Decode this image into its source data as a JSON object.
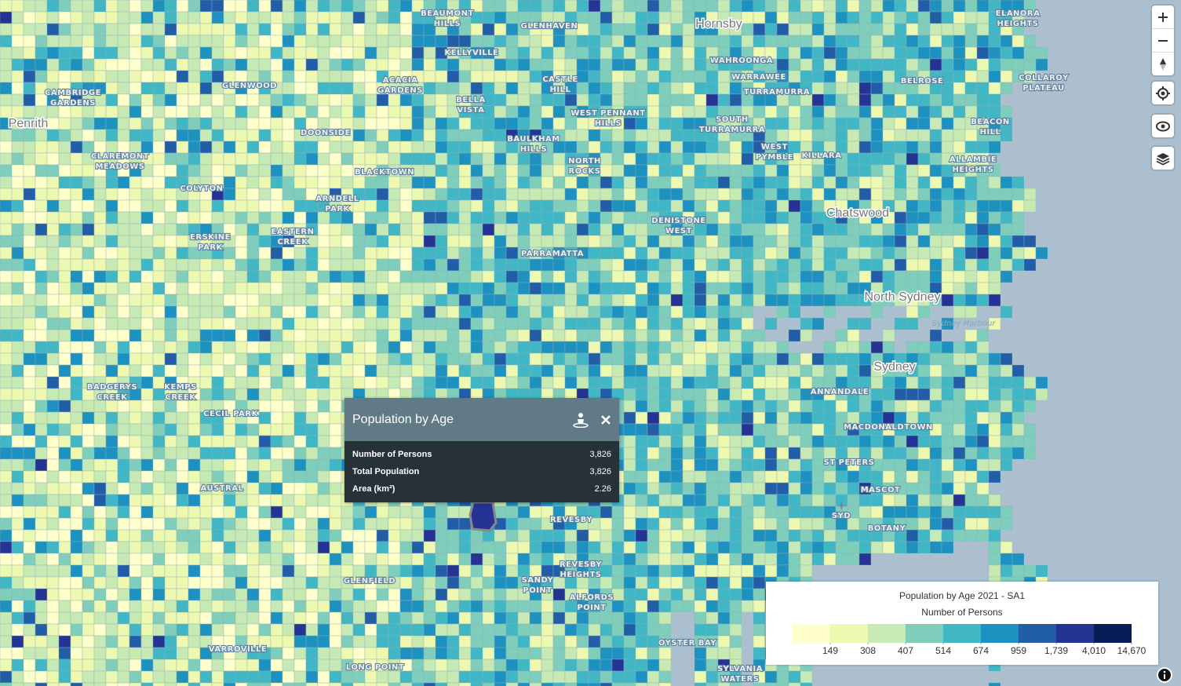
{
  "map": {
    "place_labels": [
      [
        "Penrith"
      ],
      [
        "Hornsby"
      ],
      [
        "Chatswood"
      ],
      [
        "North Sydney"
      ],
      [
        "Sydney"
      ],
      [
        "Sydney Harbour"
      ],
      [
        "BEAUMONT",
        "HILLS"
      ],
      [
        "GLENHAVEN"
      ],
      [
        "KELLYVILLE"
      ],
      [
        "CAMBRIDGE",
        "GARDENS"
      ],
      [
        "GLENWOOD"
      ],
      [
        "ACACIA",
        "GARDENS"
      ],
      [
        "CASTLE",
        "HILL"
      ],
      [
        "WAHROONGA"
      ],
      [
        "WARRAWEE"
      ],
      [
        "TURRAMURRA"
      ],
      [
        "BELROSE"
      ],
      [
        "BELLA",
        "VISTA"
      ],
      [
        "WEST PENNANT",
        "HILLS"
      ],
      [
        "SOUTH",
        "TURRAMURRA"
      ],
      [
        "BAULKHAM",
        "HILLS"
      ],
      [
        "DOONSIDE"
      ],
      [
        "CLAREMONT",
        "MEADOWS"
      ],
      [
        "BLACKTOWN"
      ],
      [
        "NORTH",
        "ROCKS"
      ],
      [
        "WEST",
        "PYMBLE"
      ],
      [
        "KILLARA"
      ],
      [
        "BEACON",
        "HILL"
      ],
      [
        "ALLAMBIE",
        "HEIGHTS"
      ],
      [
        "ELANORA",
        "HEIGHTS"
      ],
      [
        "COLLAROY",
        "PLATEAU"
      ],
      [
        "COLYTON"
      ],
      [
        "ARNDELL",
        "PARK"
      ],
      [
        "ERSKINE",
        "PARK"
      ],
      [
        "EASTERN",
        "CREEK"
      ],
      [
        "DENISTONE",
        "WEST"
      ],
      [
        "PARRAMATTA"
      ],
      [
        "ANNANDALE"
      ],
      [
        "MACDONALDTOWN"
      ],
      [
        "ST PETERS"
      ],
      [
        "MASCOT"
      ],
      [
        "SYD"
      ],
      [
        "BOTANY"
      ],
      [
        "BADGERYS",
        "CREEK"
      ],
      [
        "KEMPS",
        "CREEK"
      ],
      [
        "CECIL PARK"
      ],
      [
        "AUSTRAL"
      ],
      [
        "REVESBY"
      ],
      [
        "REVESBY",
        "HEIGHTS"
      ],
      [
        "SANDY",
        "POINT"
      ],
      [
        "GLENFIELD"
      ],
      [
        "ALFORDS",
        "POINT"
      ],
      [
        "OYSTER BAY"
      ],
      [
        "VARROVILLE"
      ],
      [
        "LONG POINT"
      ],
      [
        "SYLVANIA",
        "WATERS"
      ]
    ]
  },
  "popup": {
    "title": "Population by Age",
    "rows": [
      {
        "label": "Number of Persons",
        "value": "3,826"
      },
      {
        "label": "Total Population",
        "value": "3,826"
      },
      {
        "label": "Area (km²)",
        "value": "2.26"
      }
    ]
  },
  "legend": {
    "title": "Population by Age 2021 - SA1",
    "subtitle": "Number of Persons",
    "colors": [
      "#ffffcc",
      "#edf8b1",
      "#c7e9b4",
      "#7fcdbb",
      "#41b6c4",
      "#1d91c0",
      "#225ea8",
      "#253494",
      "#081d58"
    ],
    "breaks": [
      149,
      308,
      407,
      514,
      674,
      959,
      {
        "value": 1739,
        "label": "1,739"
      },
      {
        "value": 4010,
        "label": "4,010"
      },
      {
        "value": 14670,
        "label": "14,670"
      }
    ]
  }
}
